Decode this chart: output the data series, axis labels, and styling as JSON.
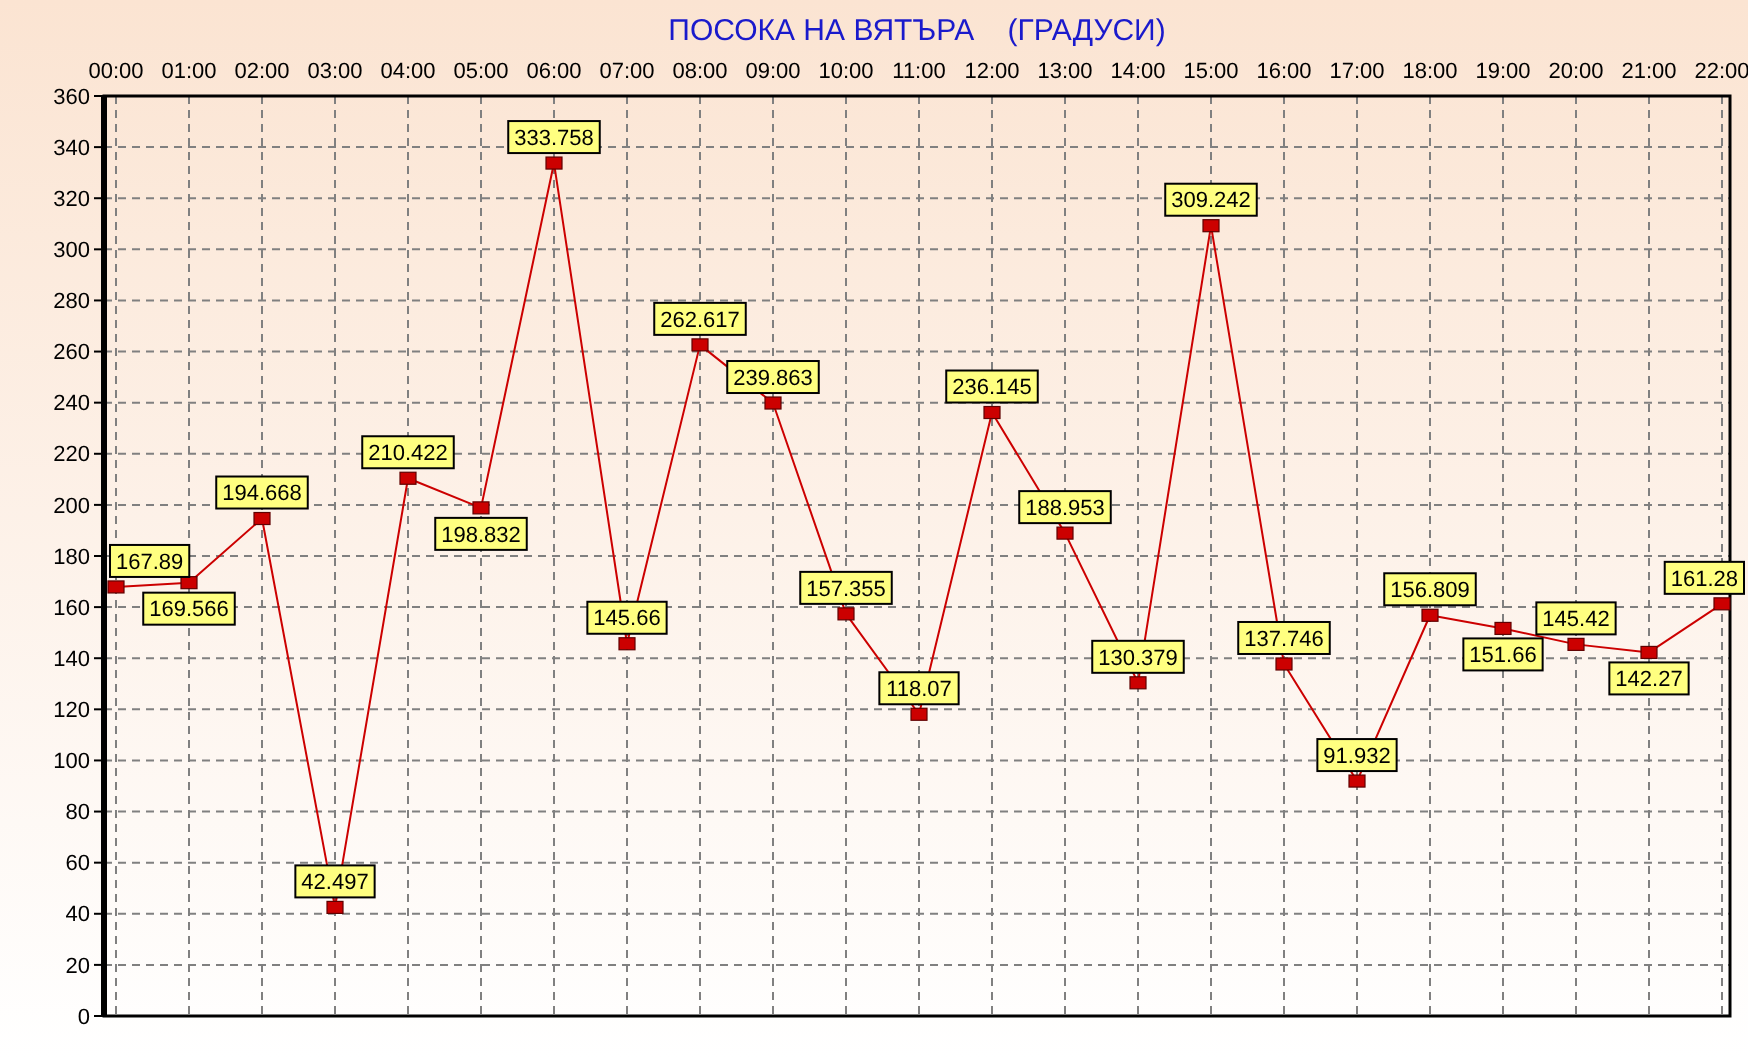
{
  "chart_data": {
    "type": "line",
    "title": "ПОСОКА НА ВЯТЪРА    (ГРАДУСИ)",
    "categories": [
      "00:00",
      "01:00",
      "02:00",
      "03:00",
      "04:00",
      "05:00",
      "06:00",
      "07:00",
      "08:00",
      "09:00",
      "10:00",
      "11:00",
      "12:00",
      "13:00",
      "14:00",
      "15:00",
      "16:00",
      "17:00",
      "18:00",
      "19:00",
      "20:00",
      "21:00",
      "22:00"
    ],
    "values": [
      167.89,
      169.566,
      194.668,
      42.497,
      210.422,
      198.832,
      333.758,
      145.66,
      262.617,
      239.863,
      157.355,
      118.07,
      236.145,
      188.953,
      130.379,
      309.242,
      137.746,
      91.932,
      156.809,
      151.66,
      145.42,
      142.27,
      161.28
    ],
    "color": "#cc0000",
    "ylim": [
      0,
      360
    ],
    "yticks": [
      0,
      20,
      40,
      60,
      80,
      100,
      120,
      140,
      160,
      180,
      200,
      220,
      240,
      260,
      280,
      300,
      320,
      340,
      360
    ],
    "grid": true,
    "marker": "square",
    "data_labels": true
  }
}
